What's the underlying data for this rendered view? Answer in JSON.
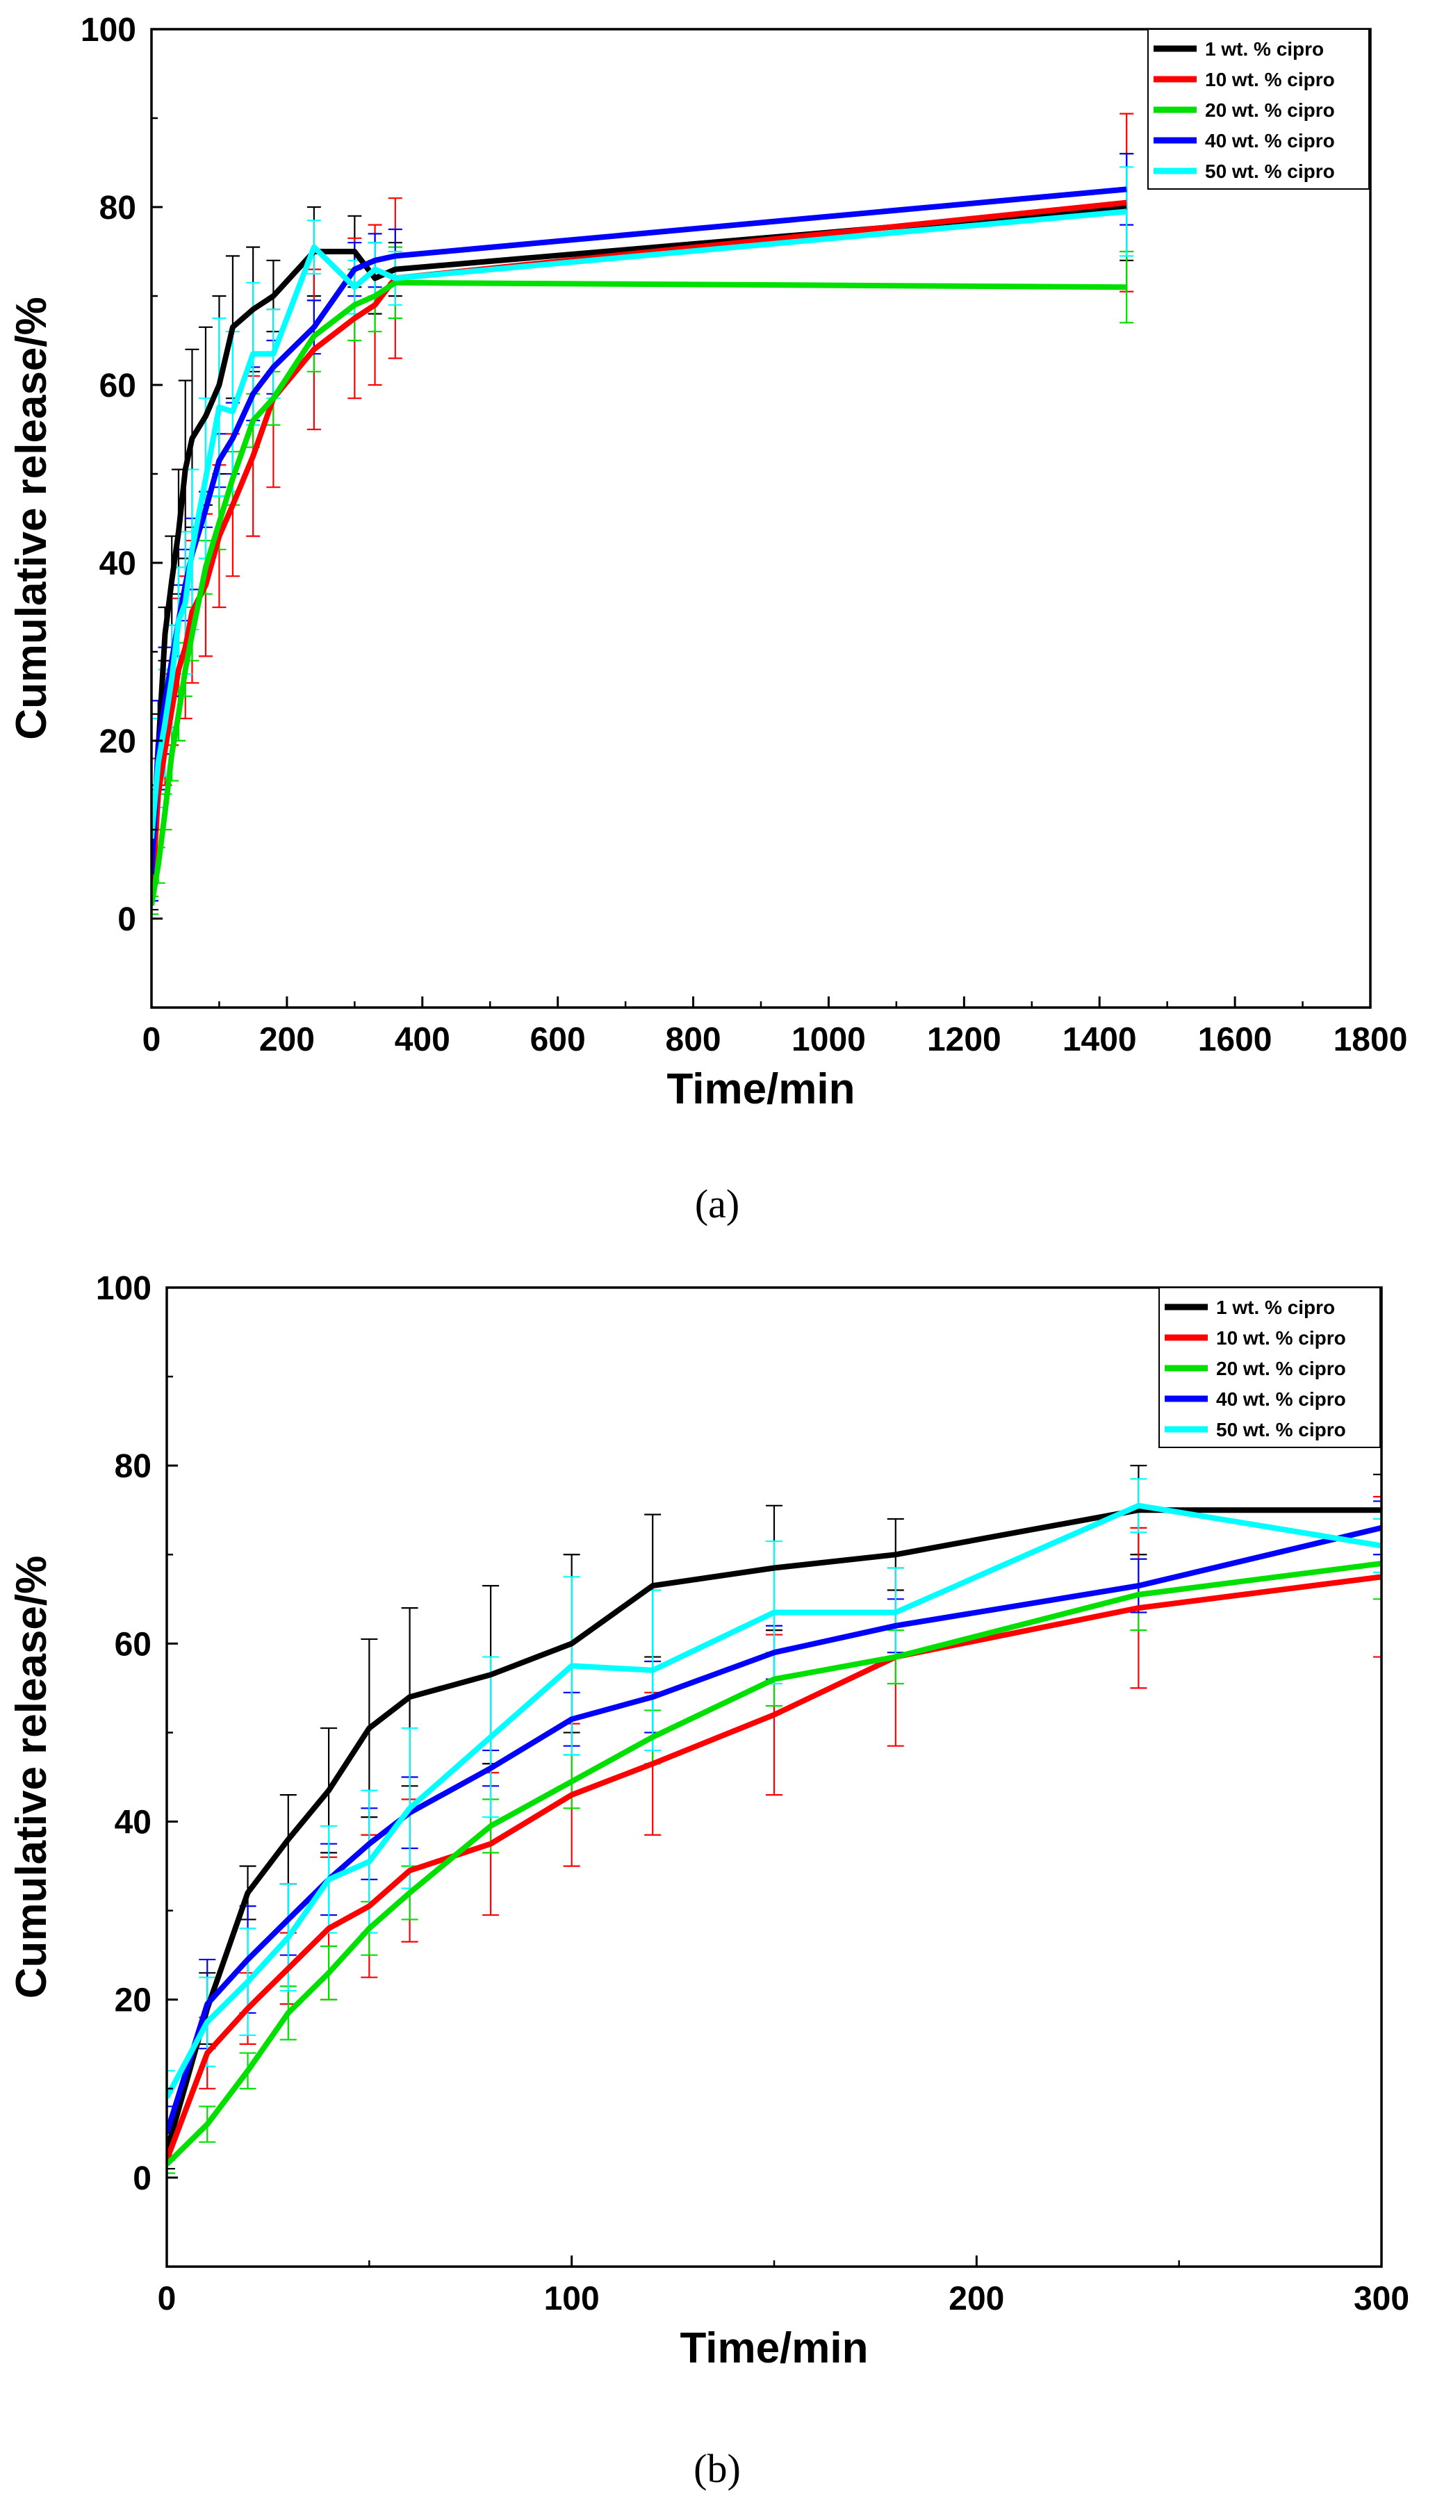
{
  "chart_data": [
    {
      "id": "a",
      "type": "line",
      "caption": "(a)",
      "xlabel": "Time/min",
      "ylabel": "Cumulative release/%",
      "xlim": [
        0,
        1800
      ],
      "ylim": [
        -10,
        100
      ],
      "xticks": [
        0,
        200,
        400,
        600,
        800,
        1000,
        1200,
        1400,
        1600,
        1800
      ],
      "yticks": [
        0,
        20,
        40,
        60,
        80,
        100
      ],
      "legend_position": "top-right",
      "series": [
        {
          "name": "1 wt. % cipro",
          "color": "#000000",
          "x": [
            0,
            10,
            20,
            30,
            40,
            50,
            60,
            80,
            100,
            120,
            150,
            180,
            240,
            300,
            330,
            360,
            1440
          ],
          "y": [
            3,
            19,
            32,
            38,
            43.5,
            50.5,
            54,
            56.5,
            60,
            66.5,
            68.5,
            70,
            75,
            75,
            72,
            73,
            80
          ],
          "err": [
            2,
            4,
            3,
            5,
            7,
            10,
            10,
            10,
            10,
            8,
            7,
            4,
            5,
            4,
            4,
            3,
            6
          ]
        },
        {
          "name": "10 wt. % cipro",
          "color": "#ff0000",
          "x": [
            0,
            10,
            20,
            30,
            40,
            50,
            60,
            80,
            100,
            120,
            150,
            180,
            240,
            300,
            330,
            360,
            1440
          ],
          "y": [
            2,
            14,
            19,
            23.5,
            28,
            30.5,
            34.5,
            37.5,
            43,
            46.5,
            52,
            58.5,
            64,
            67.5,
            69,
            72,
            80.5
          ],
          "err": [
            2,
            4,
            4,
            4,
            8,
            8,
            8,
            8,
            8,
            8,
            9,
            10,
            9,
            9,
            9,
            9,
            10
          ]
        },
        {
          "name": "20 wt. % cipro",
          "color": "#00e000",
          "x": [
            0,
            10,
            20,
            30,
            40,
            50,
            60,
            80,
            100,
            120,
            150,
            180,
            240,
            300,
            330,
            360,
            1440
          ],
          "y": [
            1.5,
            6,
            12,
            18.5,
            23,
            28,
            32,
            39.5,
            44.5,
            49.5,
            56,
            58.5,
            65.5,
            69,
            70,
            71.5,
            71
          ],
          "err": [
            1,
            2,
            2,
            3,
            3,
            3,
            3,
            3,
            3,
            3,
            3,
            3,
            4,
            4,
            4,
            4,
            4
          ]
        },
        {
          "name": "40 wt. % cipro",
          "color": "#0000ff",
          "x": [
            0,
            10,
            20,
            30,
            40,
            50,
            60,
            80,
            100,
            120,
            150,
            180,
            240,
            300,
            330,
            360,
            1440
          ],
          "y": [
            5,
            19.5,
            24.5,
            29,
            33.5,
            37.5,
            41,
            46,
            51.5,
            54,
            59,
            62,
            66.5,
            73,
            74,
            74.5,
            82
          ],
          "err": [
            3,
            5,
            6,
            4,
            4,
            4,
            4,
            2,
            3,
            4,
            3,
            3,
            3,
            3,
            3,
            3,
            4
          ]
        },
        {
          "name": "50 wt. % cipro",
          "color": "#00ffff",
          "x": [
            0,
            10,
            20,
            30,
            40,
            50,
            60,
            80,
            100,
            120,
            150,
            180,
            240,
            300,
            330,
            360,
            1440
          ],
          "y": [
            9,
            17.5,
            22,
            27,
            33.5,
            35.5,
            41.5,
            49.5,
            57.5,
            57,
            63.5,
            63.5,
            75.5,
            71,
            73,
            72,
            79.5
          ],
          "err": [
            3,
            5,
            6,
            6,
            6,
            8,
            9,
            9,
            10,
            9,
            8,
            5,
            3,
            3,
            3,
            3,
            5
          ]
        }
      ]
    },
    {
      "id": "b",
      "type": "line",
      "caption": "(b)",
      "xlabel": "Time/min",
      "ylabel": "Cumulative release/%",
      "xlim": [
        0,
        300
      ],
      "ylim": [
        -10,
        100
      ],
      "xticks": [
        0,
        100,
        200,
        300
      ],
      "yticks": [
        0,
        20,
        40,
        60,
        80,
        100
      ],
      "legend_position": "top-right",
      "series_ref": "same series as chart (a), restricted to 0-300 min"
    }
  ]
}
